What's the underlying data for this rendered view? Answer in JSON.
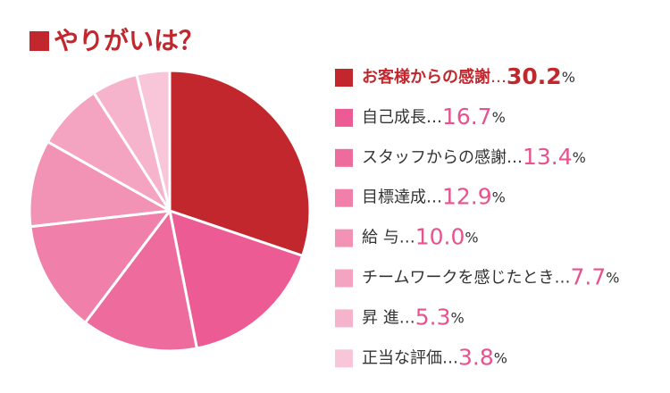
{
  "chart_data": {
    "type": "pie",
    "title": "やりがいは？",
    "categories": [
      "お客様からの感謝",
      "自己成長",
      "スタッフからの感謝",
      "目標達成",
      "給 与",
      "チームワークを感じたとき",
      "昇 進",
      "正当な評価"
    ],
    "values": [
      30.2,
      16.7,
      13.4,
      12.9,
      10.0,
      7.7,
      5.3,
      3.8
    ],
    "value_labels": [
      "30.2",
      "16.7",
      "13.4",
      "12.9",
      "10.0",
      "7.7",
      "5.3",
      "3.8"
    ],
    "separator": "…",
    "unit": "%",
    "colors": [
      "#c1272d",
      "#ec5b93",
      "#ee6c9d",
      "#f07fa9",
      "#f292b5",
      "#f4a3c1",
      "#f6b4cc",
      "#f8c6d8"
    ]
  }
}
